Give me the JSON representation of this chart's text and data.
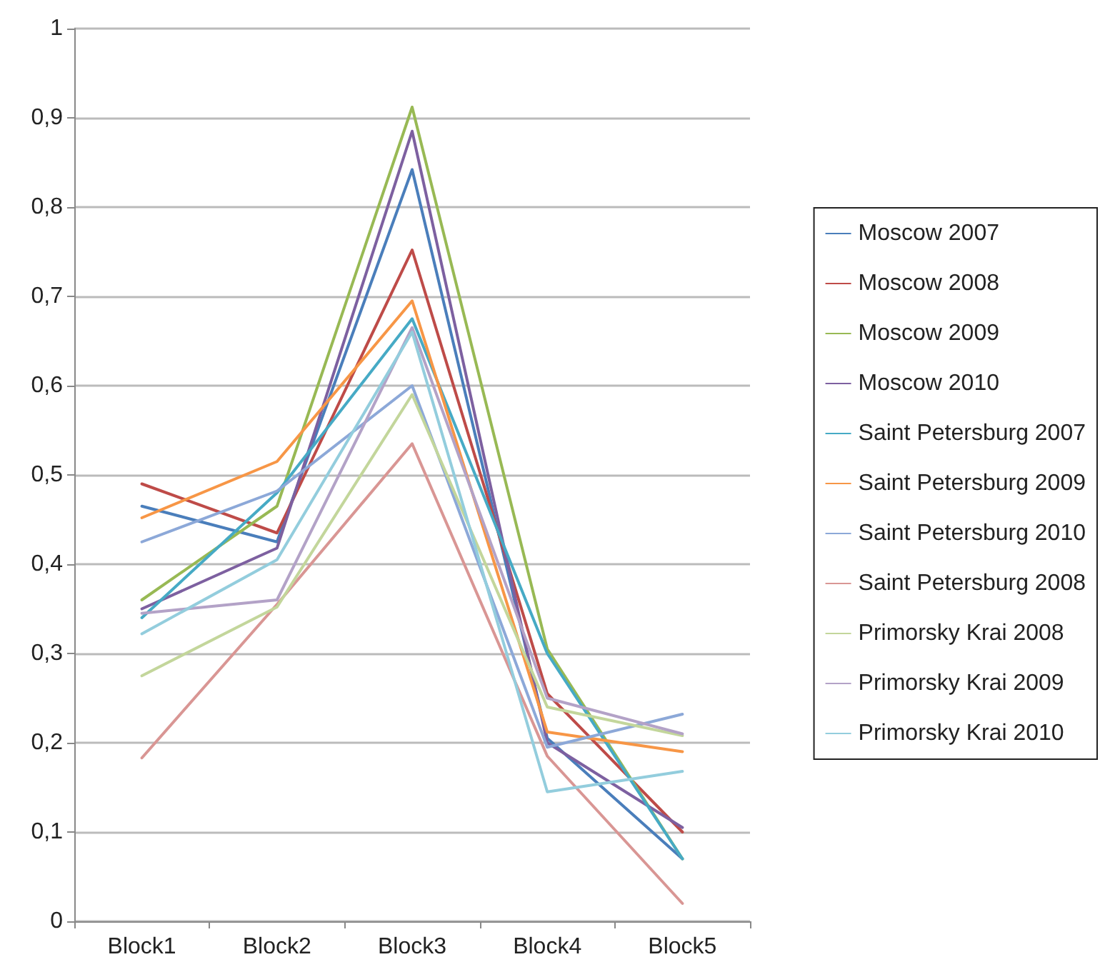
{
  "chart_data": {
    "type": "line",
    "categories": [
      "Block1",
      "Block2",
      "Block3",
      "Block4",
      "Block5"
    ],
    "ylim": [
      0,
      1
    ],
    "yticks": [
      0,
      {
        "value": 0.1,
        "label": "0,1"
      },
      {
        "value": 0.2,
        "label": "0,2"
      },
      {
        "value": 0.3,
        "label": "0,3"
      },
      {
        "value": 0.4,
        "label": "0,4"
      },
      {
        "value": 0.5,
        "label": "0,5"
      },
      {
        "value": 0.6,
        "label": "0,6"
      },
      {
        "value": 0.7,
        "label": "0,7"
      },
      {
        "value": 0.8,
        "label": "0,8"
      },
      {
        "value": 0.9,
        "label": "0,9"
      },
      1
    ],
    "grid": "y",
    "legend": "right",
    "marker": "none",
    "line_style": "solid",
    "series": [
      {
        "name": "Moscow 2007",
        "color": "#4a7ebb",
        "values": [
          0.465,
          0.425,
          0.842,
          0.205,
          0.07
        ]
      },
      {
        "name": "Moscow 2008",
        "color": "#be4b48",
        "values": [
          0.49,
          0.435,
          0.752,
          0.255,
          0.1
        ]
      },
      {
        "name": "Moscow 2009",
        "color": "#98b954",
        "values": [
          0.36,
          0.465,
          0.912,
          0.305,
          0.07
        ]
      },
      {
        "name": "Moscow 2010",
        "color": "#7d60a0",
        "values": [
          0.35,
          0.418,
          0.885,
          0.2,
          0.105
        ]
      },
      {
        "name": "Saint Petersburg 2007",
        "color": "#46aac5",
        "values": [
          0.34,
          0.48,
          0.675,
          0.3,
          0.07
        ]
      },
      {
        "name": "Saint Petersburg 2009",
        "color": "#f79646",
        "values": [
          0.452,
          0.515,
          0.695,
          0.212,
          0.19
        ]
      },
      {
        "name": "Saint Petersburg 2010",
        "color": "#8ca8d8",
        "values": [
          0.425,
          0.482,
          0.6,
          0.195,
          0.232
        ]
      },
      {
        "name": "Saint Petersburg 2008",
        "color": "#d99694",
        "values": [
          0.183,
          0.355,
          0.535,
          0.185,
          0.02
        ]
      },
      {
        "name": "Primorsky Krai 2008",
        "color": "#c3d69b",
        "values": [
          0.275,
          0.352,
          0.59,
          0.24,
          0.208
        ]
      },
      {
        "name": "Primorsky Krai 2009",
        "color": "#b3a2c7",
        "values": [
          0.345,
          0.36,
          0.665,
          0.25,
          0.21
        ]
      },
      {
        "name": "Primorsky Krai 2010",
        "color": "#93cddd",
        "values": [
          0.322,
          0.405,
          0.66,
          0.145,
          0.168
        ]
      }
    ]
  }
}
